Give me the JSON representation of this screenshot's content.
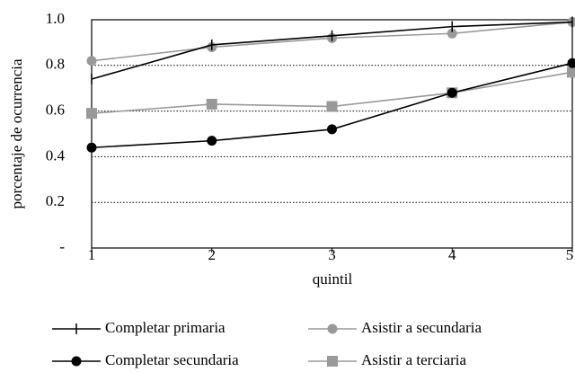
{
  "chart_data": {
    "type": "line",
    "x": [
      1,
      2,
      3,
      4,
      5
    ],
    "xlim": [
      1,
      5
    ],
    "xticks": [
      1,
      2,
      3,
      4,
      5
    ],
    "xlabel": "quintil",
    "ylabel": "porcentaje de ocurrencia",
    "ylim": [
      0,
      1
    ],
    "yticks": [
      {
        "value": 0,
        "label": "-"
      },
      0.2,
      0.4,
      0.6,
      0.8,
      {
        "value": 1,
        "label": "1.0"
      }
    ],
    "grid": true,
    "series": [
      {
        "name": "Asistir a terciaria",
        "color": "#999999",
        "marker": "square",
        "values": [
          0.59,
          0.63,
          0.62,
          0.68,
          0.77
        ]
      },
      {
        "name": "Asistir a secundaria",
        "color": "#999999",
        "marker": "circle",
        "values": [
          0.82,
          0.88,
          0.92,
          0.94,
          0.99
        ]
      },
      {
        "name": "Completar secundaria",
        "color": "#000000",
        "marker": "circle",
        "values": [
          0.44,
          0.47,
          0.52,
          0.68,
          0.81
        ]
      },
      {
        "name": "Completar primaria",
        "color": "#000000",
        "marker": "plus",
        "values": [
          0.74,
          0.89,
          0.93,
          0.97,
          0.99
        ]
      }
    ],
    "legend_order": [
      3,
      1,
      2,
      0
    ]
  }
}
